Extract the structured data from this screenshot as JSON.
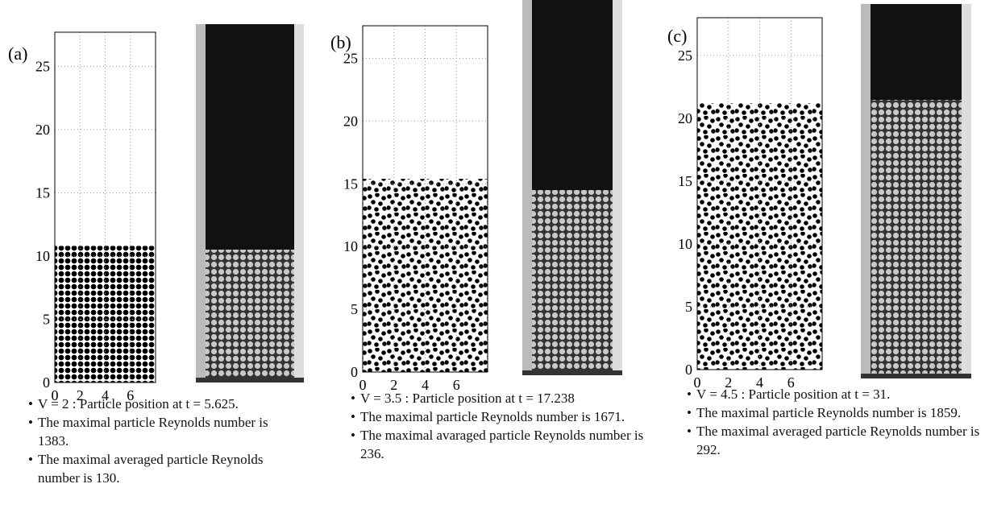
{
  "panels": [
    {
      "label": "(a)",
      "xlim": [
        0,
        8
      ],
      "xticks": [
        0,
        2,
        4,
        6
      ],
      "ylim": [
        0,
        27.7
      ],
      "yticks": [
        0,
        5,
        10,
        15,
        20,
        25
      ],
      "bed_height": 10.8,
      "bullets": [
        "V = 2 : Particle position at t = 5.625.",
        "The maximal particle Reynolds number is 1383.",
        "The maximal averaged particle Reynolds number is 130."
      ]
    },
    {
      "label": "(b)",
      "xlim": [
        0,
        8
      ],
      "xticks": [
        0,
        2,
        4,
        6
      ],
      "ylim": [
        0,
        27.6
      ],
      "yticks": [
        0,
        5,
        10,
        15,
        20,
        25
      ],
      "bed_height": 15.4,
      "bullets": [
        "V = 3.5 : Particle position at t = 17.238",
        "The maximal particle Reynolds number is 1671.",
        "The maximal avaraged particle Reynolds number is 236."
      ]
    },
    {
      "label": "(c)",
      "xlim": [
        0,
        8
      ],
      "xticks": [
        0,
        2,
        4,
        6
      ],
      "ylim": [
        0,
        28
      ],
      "yticks": [
        0,
        5,
        10,
        15,
        20,
        25
      ],
      "bed_height": 21.2,
      "bullets": [
        "V = 4.5 : Particle position at t = 31.",
        "The maximal particle Reynolds number is 1859.",
        "The maximal averaged particle Reynolds number is 292."
      ]
    }
  ]
}
